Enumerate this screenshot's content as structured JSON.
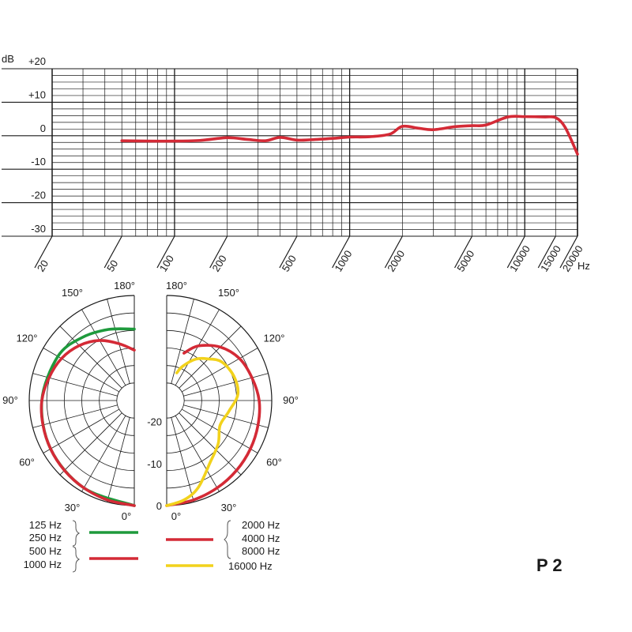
{
  "chart_data": [
    {
      "type": "line",
      "title": "",
      "y_unit": "dB",
      "x_unit": "Hz",
      "x_scale": "log",
      "ylim": [
        -30,
        20
      ],
      "xlim": [
        20,
        20000
      ],
      "y_ticks": [
        "+20",
        "+10",
        "0",
        "-10",
        "-20",
        "-30"
      ],
      "x_ticks": [
        "20",
        "50",
        "100",
        "200",
        "500",
        "1000",
        "2000",
        "5000",
        "10000",
        "15000",
        "20000"
      ],
      "grid": true,
      "color": "#d42a36",
      "series": [
        {
          "x": [
            50,
            70,
            100,
            140,
            200,
            260,
            330,
            400,
            500,
            600,
            800,
            1000,
            1300,
            1700,
            2000,
            2500,
            3000,
            4000,
            5000,
            6000,
            8000,
            10000,
            13000,
            15000,
            17000,
            20000
          ],
          "values": [
            -1.5,
            -1.6,
            -1.6,
            -1.4,
            -0.6,
            -1.1,
            -1.5,
            -0.5,
            -1.3,
            -1.2,
            -0.8,
            -0.4,
            -0.3,
            0.5,
            2.8,
            2.2,
            1.8,
            2.7,
            3.0,
            3.2,
            5.6,
            5.7,
            5.6,
            5.4,
            2.5,
            -5.5
          ]
        }
      ]
    },
    {
      "type": "polar",
      "title": "",
      "angle_labels": [
        "180°",
        "150°",
        "120°",
        "90°",
        "60°",
        "30°",
        "0°"
      ],
      "r_labels": [
        "-20",
        "-10",
        "0"
      ],
      "rlim_db": [
        -25,
        0
      ],
      "grid": true,
      "series": [
        {
          "name": "125 Hz 250 Hz",
          "color": "#1e9a3c",
          "half": "left",
          "angles": [
            0,
            30,
            60,
            90,
            120,
            140,
            160,
            180
          ],
          "values_db": [
            0,
            -1,
            -2,
            -3,
            -4,
            -5.5,
            -7,
            -8
          ]
        },
        {
          "name": "500 Hz 1000 Hz",
          "color": "#d42a36",
          "half": "left",
          "angles": [
            0,
            15,
            30,
            45,
            60,
            75,
            90,
            105,
            120,
            135,
            150,
            165,
            180
          ],
          "values_db": [
            0,
            -0.5,
            -1,
            -1.5,
            -2,
            -2.5,
            -3,
            -4,
            -5,
            -6.5,
            -8.5,
            -11,
            -13
          ]
        },
        {
          "name": "2000 Hz 4000 Hz 8000 Hz",
          "color": "#d42a36",
          "half": "right",
          "angles": [
            0,
            15,
            30,
            45,
            60,
            75,
            90,
            105,
            120,
            135,
            150,
            160
          ],
          "values_db": [
            0,
            -0.5,
            -1,
            -1.5,
            -2,
            -2.5,
            -3,
            -4,
            -5,
            -7,
            -10,
            -13
          ]
        },
        {
          "name": "16000 Hz",
          "color": "#f2d21c",
          "half": "right",
          "angles": [
            0,
            10,
            20,
            35,
            50,
            65,
            80,
            95,
            110,
            125,
            135,
            145,
            155,
            160
          ],
          "values_db": [
            0,
            -1,
            -3,
            -7,
            -9,
            -11,
            -10,
            -8,
            -8,
            -9,
            -11,
            -13,
            -16,
            -18
          ]
        }
      ]
    }
  ],
  "legend": {
    "left": {
      "group1": [
        "125 Hz",
        "250 Hz"
      ],
      "group2": [
        "500 Hz",
        "1000 Hz"
      ]
    },
    "right": {
      "group1": [
        "2000 Hz",
        "4000 Hz",
        "8000 Hz"
      ],
      "group2": [
        "16000 Hz"
      ]
    }
  },
  "model_label": "P 2"
}
